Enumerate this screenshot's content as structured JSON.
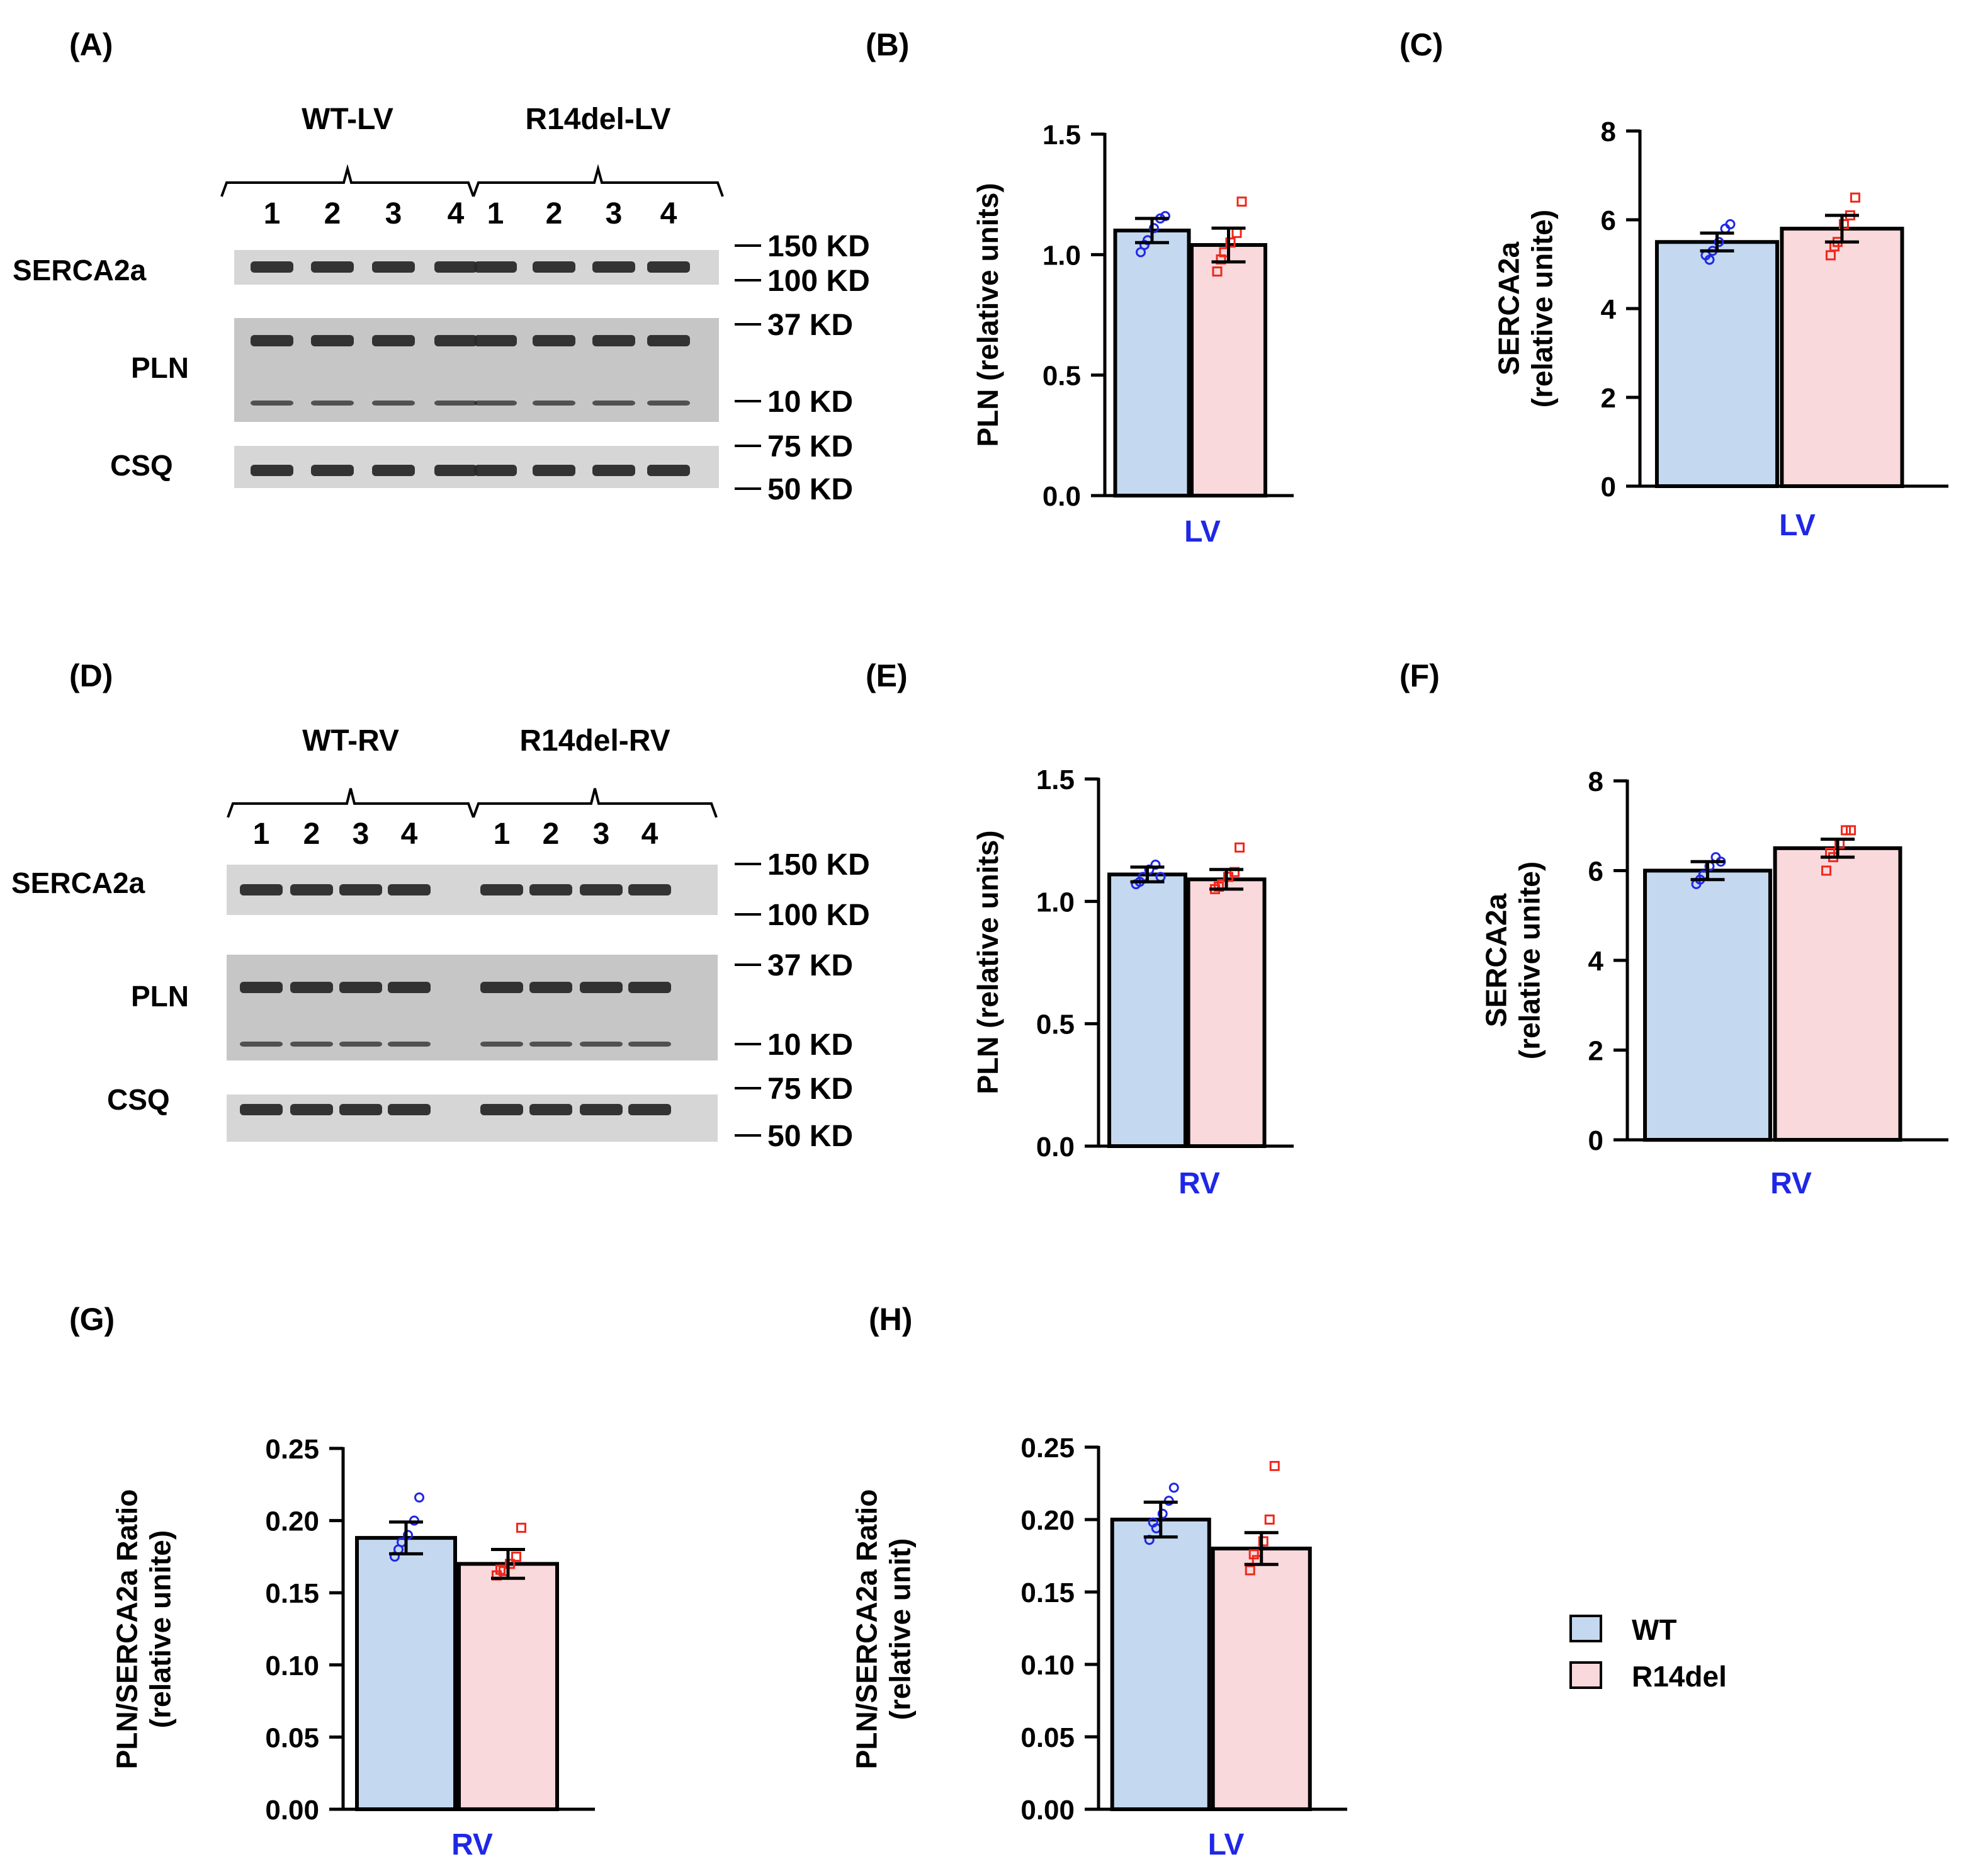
{
  "panels": {
    "A": "(A)",
    "B": "(B)",
    "C": "(C)",
    "D": "(D)",
    "E": "(E)",
    "F": "(F)",
    "G": "(G)",
    "H": "(H)"
  },
  "blots": [
    {
      "id": "A",
      "group_labels": [
        "WT-LV",
        "R14del-LV"
      ],
      "lanes": [
        "1",
        "2",
        "3",
        "4",
        "1",
        "2",
        "3",
        "4"
      ],
      "rows": [
        {
          "name": "SERCA2a",
          "bands": 1,
          "markers": [
            "150 KD",
            "100 KD"
          ]
        },
        {
          "name": "PLN",
          "bands": 2,
          "markers": [
            "37 KD",
            "10 KD"
          ]
        },
        {
          "name": "CSQ",
          "bands": 1,
          "markers": [
            "75 KD",
            "50 KD"
          ]
        }
      ]
    },
    {
      "id": "D",
      "group_labels": [
        "WT-RV",
        "R14del-RV"
      ],
      "lanes": [
        "1",
        "2",
        "3",
        "4",
        "1",
        "2",
        "3",
        "4"
      ],
      "rows": [
        {
          "name": "SERCA2a",
          "bands": 1,
          "markers": [
            "150 KD",
            "100 KD"
          ]
        },
        {
          "name": "PLN",
          "bands": 2,
          "markers": [
            "37 KD",
            "10 KD"
          ]
        },
        {
          "name": "CSQ",
          "bands": 1,
          "markers": [
            "75 KD",
            "50 KD"
          ]
        }
      ]
    }
  ],
  "colors": {
    "wt": "#c4d9ef",
    "r14del": "#f9d9dc",
    "wt_points": "#1f27e6",
    "r14del_points": "#f0271b",
    "xlabel": "#1f27e6",
    "axis": "#000000"
  },
  "legend": {
    "wt": "WT",
    "r14del": "R14del"
  },
  "chart_data": [
    {
      "id": "B",
      "type": "bar",
      "categories": [
        "WT",
        "R14del"
      ],
      "values": [
        1.1,
        1.04
      ],
      "sem": [
        0.05,
        0.07
      ],
      "ylabel": "PLN (relative units)",
      "xlabel": "LV",
      "ylim": [
        0,
        1.5
      ],
      "yticks": [
        "0.0",
        "0.5",
        "1.0",
        "1.5"
      ],
      "points": [
        [
          1.01,
          1.06,
          1.11,
          1.15,
          1.16,
          1.04
        ],
        [
          0.93,
          1.01,
          1.05,
          1.09,
          1.22,
          0.98
        ]
      ]
    },
    {
      "id": "C",
      "type": "bar",
      "categories": [
        "WT",
        "R14del"
      ],
      "values": [
        5.5,
        5.8
      ],
      "sem": [
        0.2,
        0.3
      ],
      "ylabel": "SERCA2a (relative unite)",
      "xlabel": "LV",
      "ylim": [
        0,
        8
      ],
      "yticks": [
        "0",
        "2",
        "4",
        "6",
        "8"
      ],
      "points": [
        [
          5.2,
          5.3,
          5.5,
          5.8,
          5.9,
          5.1
        ],
        [
          5.2,
          5.5,
          5.9,
          6.1,
          6.5,
          5.4
        ]
      ]
    },
    {
      "id": "E",
      "type": "bar",
      "categories": [
        "WT",
        "R14del"
      ],
      "values": [
        1.11,
        1.09
      ],
      "sem": [
        0.03,
        0.04
      ],
      "ylabel": "PLN (relative units)",
      "xlabel": "RV",
      "ylim": [
        0,
        1.5
      ],
      "yticks": [
        "0.0",
        "0.5",
        "1.0",
        "1.5"
      ],
      "points": [
        [
          1.07,
          1.1,
          1.13,
          1.15,
          1.1,
          1.08
        ],
        [
          1.05,
          1.07,
          1.1,
          1.12,
          1.22,
          1.06
        ]
      ]
    },
    {
      "id": "F",
      "type": "bar",
      "categories": [
        "WT",
        "R14del"
      ],
      "values": [
        6.0,
        6.5
      ],
      "sem": [
        0.2,
        0.2
      ],
      "ylabel": "SERCA2a (relative unite)",
      "xlabel": "RV",
      "ylim": [
        0,
        8
      ],
      "yticks": [
        "0",
        "2",
        "4",
        "6",
        "8"
      ],
      "points": [
        [
          5.7,
          5.9,
          6.1,
          6.3,
          6.2,
          5.8
        ],
        [
          6.0,
          6.3,
          6.6,
          6.9,
          6.9,
          6.4
        ]
      ]
    },
    {
      "id": "G",
      "type": "bar",
      "categories": [
        "WT",
        "R14del"
      ],
      "values": [
        0.188,
        0.17
      ],
      "sem": [
        0.011,
        0.01
      ],
      "ylabel": "PLN/SERCA2a Ratio (relative unite)",
      "xlabel": "RV",
      "ylim": [
        0,
        0.25
      ],
      "yticks": [
        "0.00",
        "0.05",
        "0.10",
        "0.15",
        "0.20",
        "0.25"
      ],
      "points": [
        [
          0.175,
          0.185,
          0.19,
          0.2,
          0.216,
          0.18
        ],
        [
          0.162,
          0.165,
          0.17,
          0.175,
          0.195,
          0.166
        ]
      ]
    },
    {
      "id": "H",
      "type": "bar",
      "categories": [
        "WT",
        "R14del"
      ],
      "values": [
        0.2,
        0.18
      ],
      "sem": [
        0.012,
        0.011
      ],
      "ylabel": "PLN/SERCA2a Ratio (relative unit)",
      "xlabel": "LV",
      "ylim": [
        0,
        0.25
      ],
      "yticks": [
        "0.00",
        "0.05",
        "0.10",
        "0.15",
        "0.20",
        "0.25"
      ],
      "points": [
        [
          0.186,
          0.194,
          0.204,
          0.213,
          0.222,
          0.198
        ],
        [
          0.165,
          0.172,
          0.185,
          0.2,
          0.237,
          0.176
        ]
      ]
    }
  ]
}
